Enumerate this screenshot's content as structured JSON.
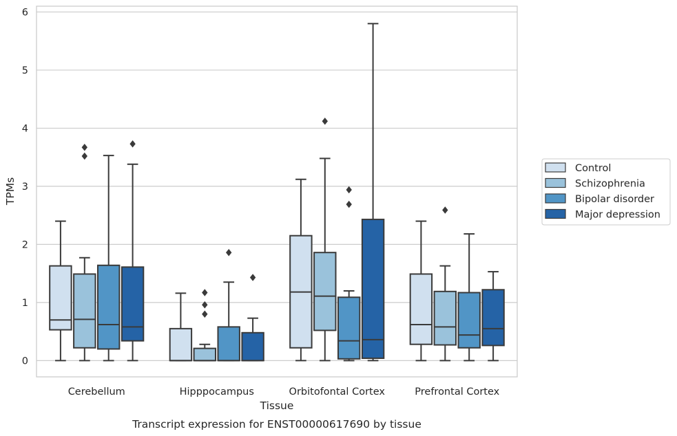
{
  "caption": "Transcript expression for ENST00000617690 by tissue",
  "chart_data": {
    "type": "box",
    "xlabel": "Tissue",
    "ylabel": "TPMs",
    "ylim": [
      -0.28,
      6.1
    ],
    "yticks": [
      0,
      1,
      2,
      3,
      4,
      5,
      6
    ],
    "grid": "horizontal",
    "legend_position": "right",
    "categories": [
      "Cerebellum",
      "Hipppocampus",
      "Orbitofontal Cortex",
      "Prefrontal Cortex"
    ],
    "series": [
      {
        "name": "Control",
        "color": "#d0e0ef",
        "boxes": [
          {
            "whislo": 0,
            "q1": 0.53,
            "med": 0.7,
            "q3": 1.63,
            "whishi": 2.4,
            "fliers": []
          },
          {
            "whislo": 0,
            "q1": 0,
            "med": 0,
            "q3": 0.55,
            "whishi": 1.16,
            "fliers": []
          },
          {
            "whislo": 0,
            "q1": 0.22,
            "med": 1.18,
            "q3": 2.15,
            "whishi": 3.12,
            "fliers": []
          },
          {
            "whislo": 0,
            "q1": 0.28,
            "med": 0.62,
            "q3": 1.49,
            "whishi": 2.4,
            "fliers": []
          }
        ]
      },
      {
        "name": "Schizophrenia",
        "color": "#9ac2db",
        "boxes": [
          {
            "whislo": 0,
            "q1": 0.22,
            "med": 0.71,
            "q3": 1.49,
            "whishi": 1.77,
            "fliers": [
              3.52,
              3.67
            ]
          },
          {
            "whislo": 0,
            "q1": 0,
            "med": 0,
            "q3": 0.21,
            "whishi": 0.28,
            "fliers": [
              0.8,
              0.96,
              1.17
            ]
          },
          {
            "whislo": 0,
            "q1": 0.52,
            "med": 1.11,
            "q3": 1.86,
            "whishi": 3.48,
            "fliers": [
              4.12
            ]
          },
          {
            "whislo": 0,
            "q1": 0.27,
            "med": 0.58,
            "q3": 1.19,
            "whishi": 1.63,
            "fliers": [
              2.59
            ]
          }
        ]
      },
      {
        "name": "Bipolar disorder",
        "color": "#5195c6",
        "boxes": [
          {
            "whislo": 0,
            "q1": 0.2,
            "med": 0.62,
            "q3": 1.64,
            "whishi": 3.53,
            "fliers": []
          },
          {
            "whislo": 0,
            "q1": 0,
            "med": 0,
            "q3": 0.58,
            "whishi": 1.35,
            "fliers": [
              1.86
            ]
          },
          {
            "whislo": 0,
            "q1": 0.03,
            "med": 0.34,
            "q3": 1.09,
            "whishi": 1.2,
            "fliers": [
              2.69,
              2.94
            ]
          },
          {
            "whislo": 0,
            "q1": 0.22,
            "med": 0.44,
            "q3": 1.17,
            "whishi": 2.18,
            "fliers": []
          }
        ]
      },
      {
        "name": "Major depression",
        "color": "#2563a6",
        "boxes": [
          {
            "whislo": 0,
            "q1": 0.34,
            "med": 0.58,
            "q3": 1.61,
            "whishi": 3.38,
            "fliers": [
              3.73
            ]
          },
          {
            "whislo": 0,
            "q1": 0,
            "med": 0,
            "q3": 0.48,
            "whishi": 0.73,
            "fliers": [
              1.43
            ]
          },
          {
            "whislo": 0,
            "q1": 0.04,
            "med": 0.36,
            "q3": 2.43,
            "whishi": 5.8,
            "fliers": []
          },
          {
            "whislo": 0,
            "q1": 0.26,
            "med": 0.55,
            "q3": 1.22,
            "whishi": 1.53,
            "fliers": []
          }
        ]
      }
    ]
  }
}
